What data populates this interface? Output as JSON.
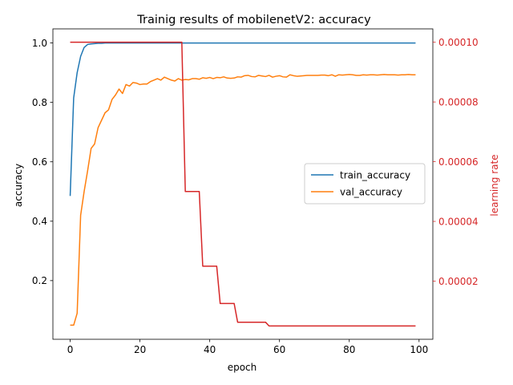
{
  "chart_data": {
    "type": "line",
    "title": "Trainig results of mobilenetV2: accuracy",
    "xlabel": "epoch",
    "ylabel": "accuracy",
    "y2label": "learning rate",
    "xlim": [
      -4.95,
      103.95
    ],
    "ylim": [
      0.0025,
      1.0475
    ],
    "y2lim": [
      5.25e-07,
      0.000104475
    ],
    "x_ticks": [
      0,
      20,
      40,
      60,
      80,
      100
    ],
    "y_ticks": [
      0.2,
      0.4,
      0.6,
      0.8,
      1.0
    ],
    "y_tick_labels": [
      "0.2",
      "0.4",
      "0.6",
      "0.8",
      "1.0"
    ],
    "y2_ticks": [
      2e-05,
      4e-05,
      6e-05,
      8e-05,
      0.0001
    ],
    "y2_tick_labels": [
      "0.00002",
      "0.00004",
      "0.00006",
      "0.00008",
      "0.00010"
    ],
    "legend_position": "center-right",
    "grid": false,
    "series": [
      {
        "name": "train_accuracy",
        "axis": "left",
        "color": "#1f77b4",
        "x": [
          0,
          1,
          2,
          3,
          4,
          5,
          6,
          7,
          8,
          9,
          10,
          12,
          14,
          16,
          20,
          30,
          40,
          50,
          60,
          70,
          80,
          90,
          99
        ],
        "y": [
          0.485,
          0.815,
          0.9,
          0.955,
          0.985,
          0.995,
          0.997,
          0.998,
          0.999,
          0.999,
          1.0,
          1.0,
          1.0,
          1.0,
          1.0,
          1.0,
          1.0,
          1.0,
          1.0,
          1.0,
          1.0,
          1.0,
          1.0
        ]
      },
      {
        "name": "val_accuracy",
        "axis": "left",
        "color": "#ff7f0e",
        "x": [
          0,
          1,
          2,
          3,
          4,
          5,
          6,
          7,
          8,
          9,
          10,
          11,
          12,
          13,
          14,
          15,
          16,
          17,
          18,
          19,
          20,
          21,
          22,
          23,
          24,
          25,
          26,
          27,
          28,
          29,
          30,
          31,
          32,
          33,
          34,
          35,
          36,
          37,
          38,
          39,
          40,
          41,
          42,
          43,
          44,
          45,
          46,
          47,
          48,
          49,
          50,
          51,
          52,
          53,
          54,
          55,
          56,
          57,
          58,
          59,
          60,
          61,
          62,
          63,
          64,
          65,
          66,
          67,
          68,
          69,
          70,
          71,
          72,
          73,
          74,
          75,
          76,
          77,
          78,
          79,
          80,
          81,
          82,
          83,
          84,
          85,
          86,
          87,
          88,
          89,
          90,
          91,
          92,
          93,
          94,
          95,
          96,
          97,
          98,
          99
        ],
        "y": [
          0.05,
          0.05,
          0.09,
          0.42,
          0.5,
          0.57,
          0.645,
          0.66,
          0.715,
          0.74,
          0.765,
          0.775,
          0.81,
          0.825,
          0.845,
          0.83,
          0.86,
          0.855,
          0.867,
          0.865,
          0.86,
          0.862,
          0.862,
          0.87,
          0.875,
          0.88,
          0.875,
          0.885,
          0.88,
          0.875,
          0.872,
          0.88,
          0.875,
          0.877,
          0.876,
          0.88,
          0.88,
          0.878,
          0.883,
          0.881,
          0.884,
          0.88,
          0.884,
          0.883,
          0.886,
          0.882,
          0.881,
          0.882,
          0.886,
          0.885,
          0.89,
          0.891,
          0.887,
          0.886,
          0.891,
          0.889,
          0.887,
          0.891,
          0.885,
          0.888,
          0.89,
          0.886,
          0.885,
          0.893,
          0.89,
          0.888,
          0.889,
          0.89,
          0.891,
          0.891,
          0.891,
          0.891,
          0.892,
          0.892,
          0.89,
          0.893,
          0.888,
          0.893,
          0.892,
          0.893,
          0.894,
          0.893,
          0.891,
          0.891,
          0.893,
          0.892,
          0.893,
          0.893,
          0.892,
          0.893,
          0.894,
          0.893,
          0.893,
          0.893,
          0.892,
          0.893,
          0.893,
          0.894,
          0.893,
          0.893
        ]
      },
      {
        "name": "learning_rate",
        "axis": "right",
        "color": "#d62728",
        "x": [
          0,
          32,
          33,
          37,
          38,
          42,
          43,
          47,
          48,
          56,
          57,
          99
        ],
        "y": [
          0.0001,
          0.0001,
          5e-05,
          5e-05,
          2.5e-05,
          2.5e-05,
          1.25e-05,
          1.25e-05,
          6.25e-06,
          6.25e-06,
          5e-06,
          5e-06
        ]
      }
    ]
  }
}
